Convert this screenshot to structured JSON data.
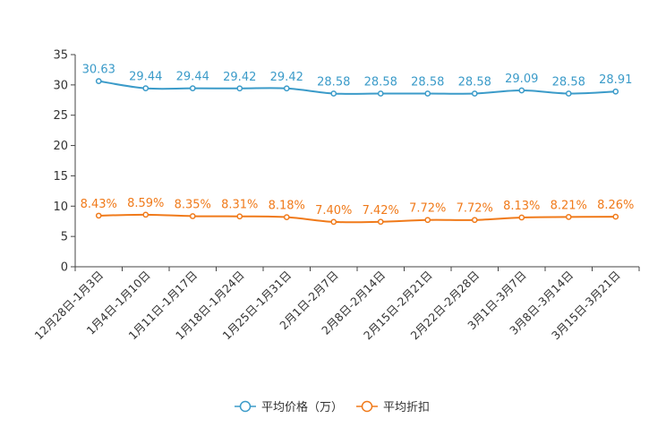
{
  "chart_data": {
    "type": "line",
    "title": "",
    "categories": [
      "12月28日-1月3日",
      "1月4日-1月10日",
      "1月11日-1月17日",
      "1月18日-1月24日",
      "1月25日-1月31日",
      "2月1日-2月7日",
      "2月8日-2月14日",
      "2月15日-2月21日",
      "2月22日-2月28日",
      "3月1日-3月7日",
      "3月8日-3月14日",
      "3月15日-3月21日"
    ],
    "series": [
      {
        "name": "平均价格（万）",
        "color": "#3b9bc9",
        "values": [
          30.63,
          29.44,
          29.44,
          29.42,
          29.42,
          28.58,
          28.58,
          28.58,
          28.58,
          29.09,
          28.58,
          28.91
        ],
        "labels": [
          "30.63",
          "29.44",
          "29.44",
          "29.42",
          "29.42",
          "28.58",
          "28.58",
          "28.58",
          "28.58",
          "29.09",
          "28.58",
          "28.91"
        ]
      },
      {
        "name": "平均折扣",
        "color": "#f07a1a",
        "values": [
          8.43,
          8.59,
          8.35,
          8.31,
          8.18,
          7.4,
          7.42,
          7.72,
          7.72,
          8.13,
          8.21,
          8.26
        ],
        "labels": [
          "8.43%",
          "8.59%",
          "8.35%",
          "8.31%",
          "8.18%",
          "7.40%",
          "7.42%",
          "7.72%",
          "7.72%",
          "8.13%",
          "8.21%",
          "8.26%"
        ]
      }
    ],
    "ylim": [
      0,
      35
    ],
    "yticks": [
      "0",
      "5",
      "10",
      "15",
      "20",
      "25",
      "30",
      "35"
    ],
    "grid": false,
    "legend": "bottom-center"
  }
}
